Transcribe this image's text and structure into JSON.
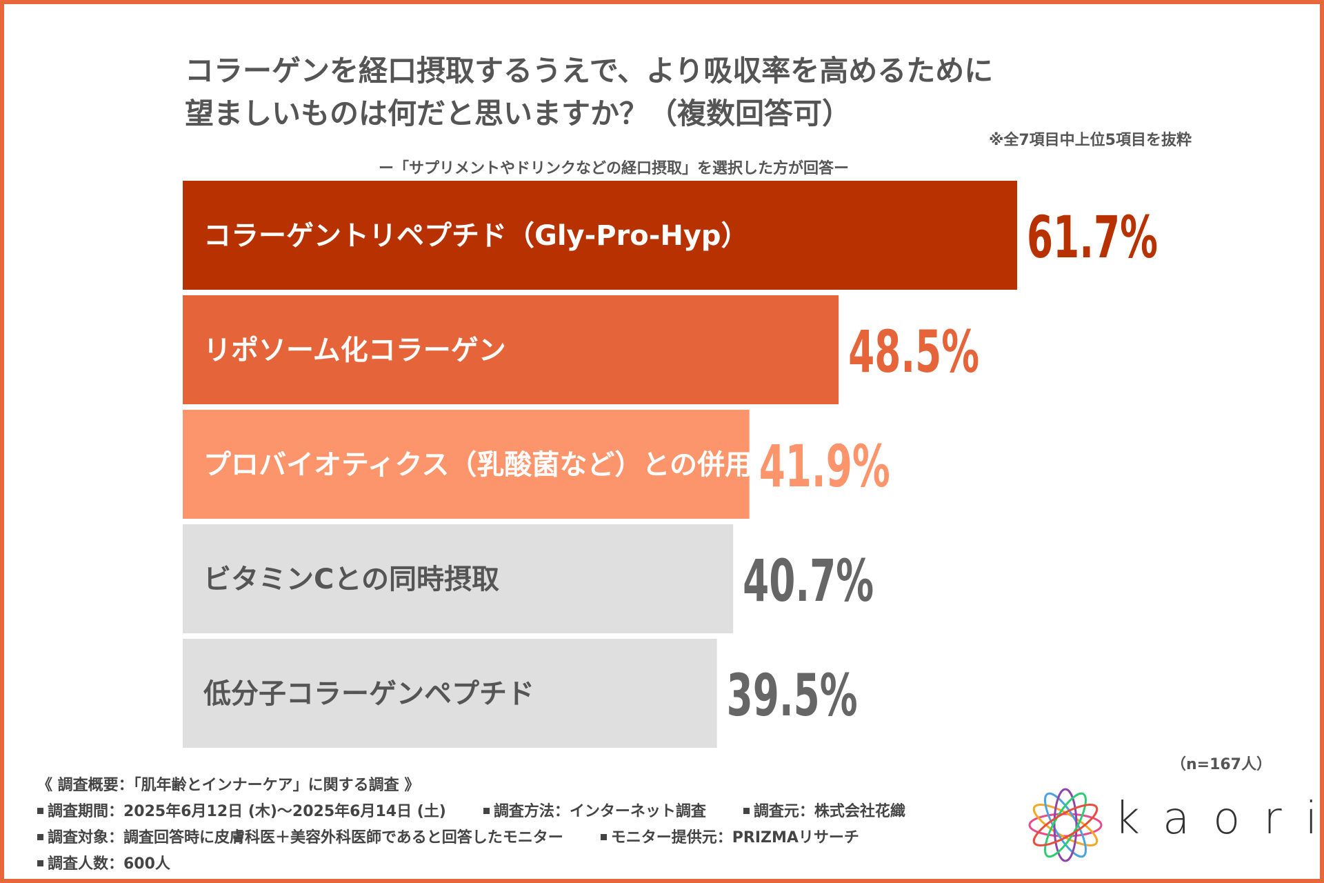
{
  "title": {
    "line1": "コラーゲンを経口摂取するうえで、より吸収率を高めるために",
    "line2": "望ましいものは何だと思いますか？（複数回答可）"
  },
  "note": "※全7項目中上位5項目を抜粋",
  "subtitle": "ー「サプリメントやドリンクなどの経口摂取」を選択した方が回答ー",
  "chart_data": {
    "type": "bar",
    "orientation": "horizontal",
    "categories": [
      "コラーゲントリペプチド（Gly-Pro-Hyp）",
      "リポソーム化コラーゲン",
      "プロバイオティクス（乳酸菌など）との併用",
      "ビタミンCとの同時摂取",
      "低分子コラーゲンペプチド"
    ],
    "values": [
      61.7,
      48.5,
      41.9,
      40.7,
      39.5
    ],
    "value_labels": [
      "61.7%",
      "48.5%",
      "41.9%",
      "40.7%",
      "39.5%"
    ],
    "unit": "%",
    "xlim": [
      0,
      100
    ],
    "colors": [
      "#b83100",
      "#e5643a",
      "#fd956c",
      "#dfdfdf",
      "#dfdfdf"
    ],
    "value_colors": [
      "#b83100",
      "#e5643a",
      "#fd956c",
      "#666666",
      "#666666"
    ],
    "label_colors": [
      "#ffffff",
      "#ffffff",
      "#ffffff",
      "#555555",
      "#555555"
    ],
    "title": "コラーゲンを経口摂取するうえで、より吸収率を高めるために望ましいものは何だと思いますか？（複数回答可）",
    "grid": false,
    "legend": "none"
  },
  "sample_size": "（n=167人）",
  "footer": {
    "heading": "《 調査概要：「肌年齢とインナーケア」に関する調査 》",
    "period": "調査期間：2025年6月12日 (木)～2025年6月14日 (土)",
    "method": "調査方法：インターネット調査",
    "source": "調査元：株式会社花織",
    "target": "調査対象：調査回答時に皮膚科医＋美容外科医師であると回答したモニター",
    "provider": "モニター提供元：PRIZMAリサーチ",
    "count": "調査人数：600人"
  },
  "logo": {
    "text": "kaori"
  }
}
